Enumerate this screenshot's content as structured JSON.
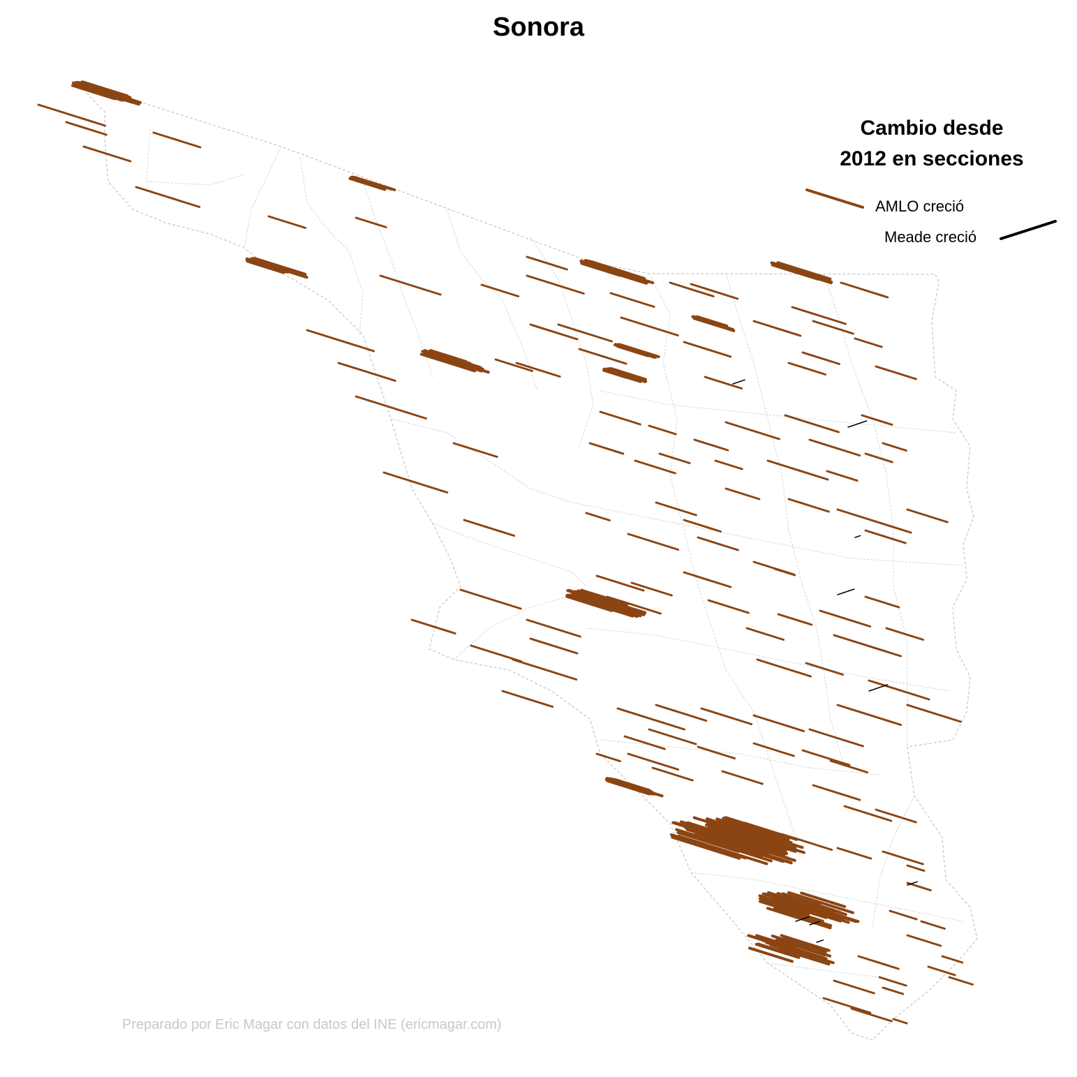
{
  "title": "Sonora",
  "legend": {
    "title_line1": "Cambio desde",
    "title_line2": "2012 en secciones",
    "amlo_label": "AMLO creció",
    "meade_label": "Meade creció"
  },
  "credit": "Preparado por Eric Magar con datos del INE (ericmagar.com)",
  "colors": {
    "amlo": "#8B4513",
    "meade": "#000000",
    "border": "#c8c8c8",
    "credit_text": "#c8c8c8"
  },
  "map_layers": [
    "municipal-borders",
    "state-border",
    "change-arrows"
  ]
}
